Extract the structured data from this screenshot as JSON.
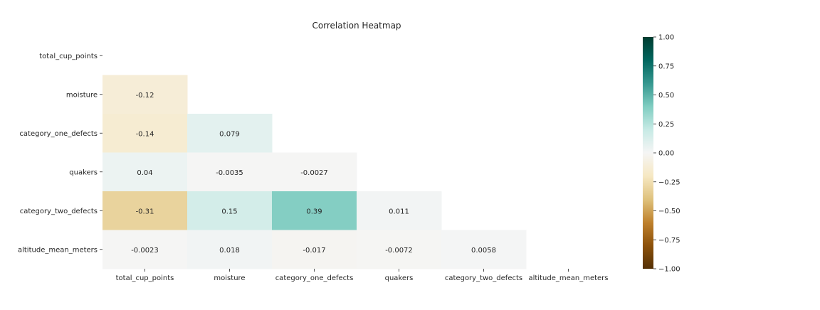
{
  "chart_data": {
    "type": "heatmap",
    "title": "Correlation Heatmap",
    "variables": [
      "total_cup_points",
      "moisture",
      "category_one_defects",
      "quakers",
      "category_two_defects",
      "altitude_mean_meters"
    ],
    "mask": "upper-triangle-including-diagonal",
    "cells": [
      {
        "row": 1,
        "col": 0,
        "value": -0.12,
        "label": "-0.12"
      },
      {
        "row": 2,
        "col": 0,
        "value": -0.14,
        "label": "-0.14"
      },
      {
        "row": 2,
        "col": 1,
        "value": 0.079,
        "label": "0.079"
      },
      {
        "row": 3,
        "col": 0,
        "value": 0.04,
        "label": "0.04"
      },
      {
        "row": 3,
        "col": 1,
        "value": -0.0035,
        "label": "-0.0035"
      },
      {
        "row": 3,
        "col": 2,
        "value": -0.0027,
        "label": "-0.0027"
      },
      {
        "row": 4,
        "col": 0,
        "value": -0.31,
        "label": "-0.31"
      },
      {
        "row": 4,
        "col": 1,
        "value": 0.15,
        "label": "0.15"
      },
      {
        "row": 4,
        "col": 2,
        "value": 0.39,
        "label": "0.39"
      },
      {
        "row": 4,
        "col": 3,
        "value": 0.011,
        "label": "0.011"
      },
      {
        "row": 5,
        "col": 0,
        "value": -0.0023,
        "label": "-0.0023"
      },
      {
        "row": 5,
        "col": 1,
        "value": 0.018,
        "label": "0.018"
      },
      {
        "row": 5,
        "col": 2,
        "value": -0.017,
        "label": "-0.017"
      },
      {
        "row": 5,
        "col": 3,
        "value": -0.0072,
        "label": "-0.0072"
      },
      {
        "row": 5,
        "col": 4,
        "value": 0.0058,
        "label": "0.0058"
      }
    ],
    "colorbar": {
      "colormap": "BrBG",
      "vmin": -1.0,
      "vmax": 1.0,
      "tick_values": [
        -1.0,
        -0.75,
        -0.5,
        -0.25,
        0.0,
        0.25,
        0.5,
        0.75,
        1.0
      ],
      "tick_labels": [
        "−1.00",
        "−0.75",
        "−0.50",
        "−0.25",
        "0.00",
        "0.25",
        "0.50",
        "0.75",
        "1.00"
      ],
      "stops": [
        {
          "v": -1.0,
          "color": "#543005"
        },
        {
          "v": -0.8,
          "color": "#8c510a"
        },
        {
          "v": -0.6,
          "color": "#bf812d"
        },
        {
          "v": -0.4,
          "color": "#dfc27d"
        },
        {
          "v": -0.2,
          "color": "#f6e8c3"
        },
        {
          "v": 0.0,
          "color": "#f5f5f5"
        },
        {
          "v": 0.2,
          "color": "#c7eae5"
        },
        {
          "v": 0.4,
          "color": "#80cdc1"
        },
        {
          "v": 0.6,
          "color": "#35978f"
        },
        {
          "v": 0.8,
          "color": "#01665e"
        },
        {
          "v": 1.0,
          "color": "#003c30"
        }
      ]
    }
  }
}
